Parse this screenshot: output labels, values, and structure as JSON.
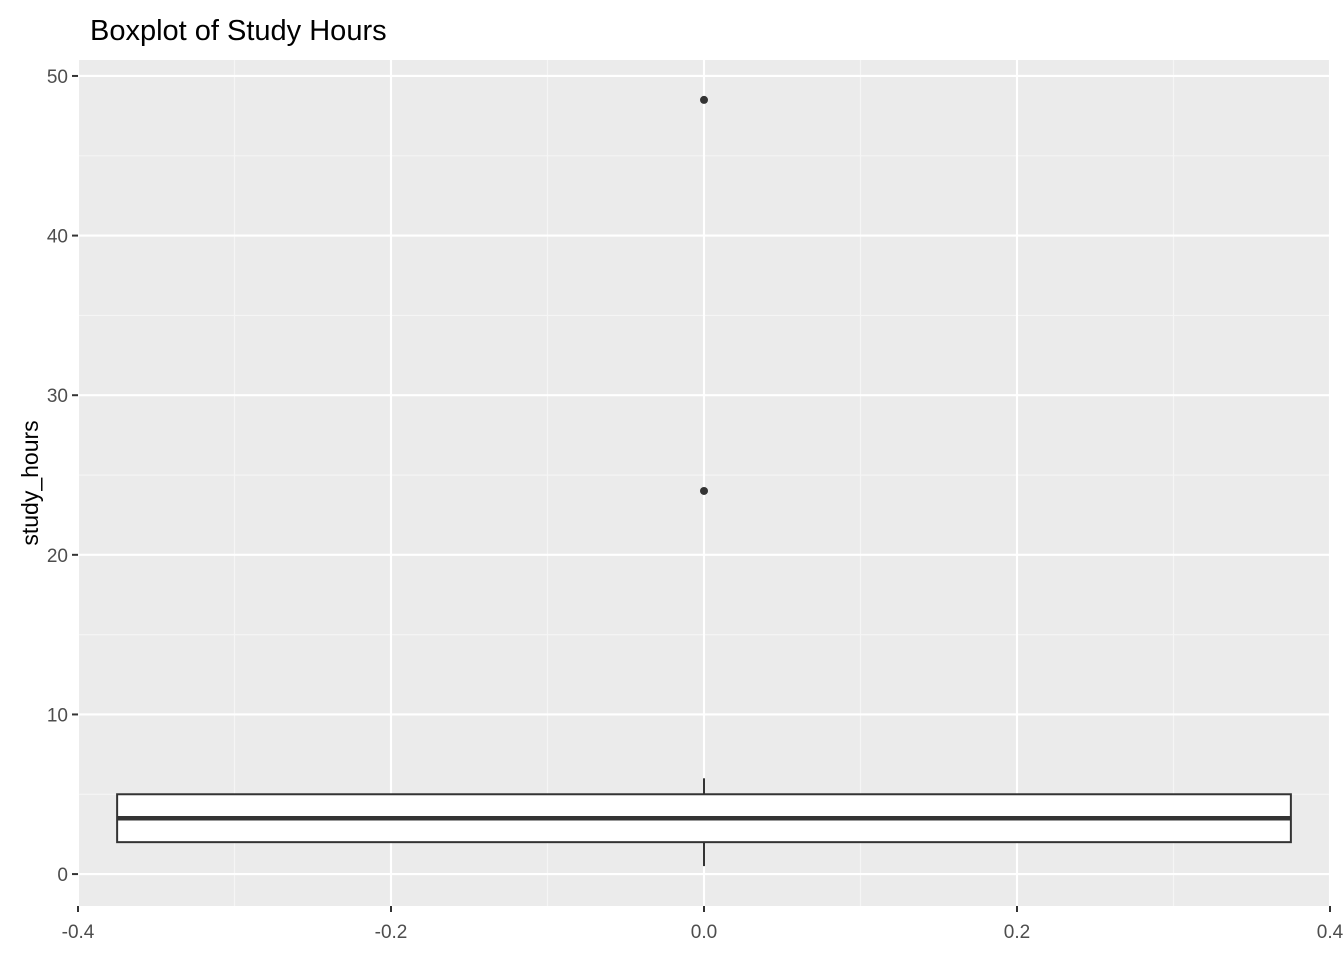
{
  "chart_data": {
    "type": "boxplot",
    "title": "Boxplot of Study Hours",
    "xlabel": "",
    "ylabel": "study_hours",
    "xlim": [
      -0.4,
      0.4
    ],
    "ylim": [
      -2,
      51
    ],
    "x_ticks": [
      -0.4,
      -0.2,
      0.0,
      0.2,
      0.4
    ],
    "x_tick_labels": [
      "-0.4",
      "-0.2",
      "0.0",
      "0.2",
      "0.4"
    ],
    "y_ticks": [
      0,
      10,
      20,
      30,
      40,
      50
    ],
    "y_tick_labels": [
      "0",
      "10",
      "20",
      "30",
      "40",
      "50"
    ],
    "grid": true,
    "box": {
      "x_center": 0.0,
      "x_min": -0.375,
      "x_max": 0.375,
      "whisker_low": 0.5,
      "q1": 2,
      "median": 3.5,
      "q3": 5,
      "whisker_high": 6
    },
    "outliers": [
      24,
      48.5
    ],
    "colors": {
      "panel_background": "#ebebeb",
      "grid_major": "#ffffff",
      "grid_minor": "#f5f5f5",
      "box_fill": "#ffffff",
      "box_stroke": "#333333",
      "outlier": "#333333",
      "tick_text": "#4d4d4d",
      "title_text": "#000000"
    }
  }
}
